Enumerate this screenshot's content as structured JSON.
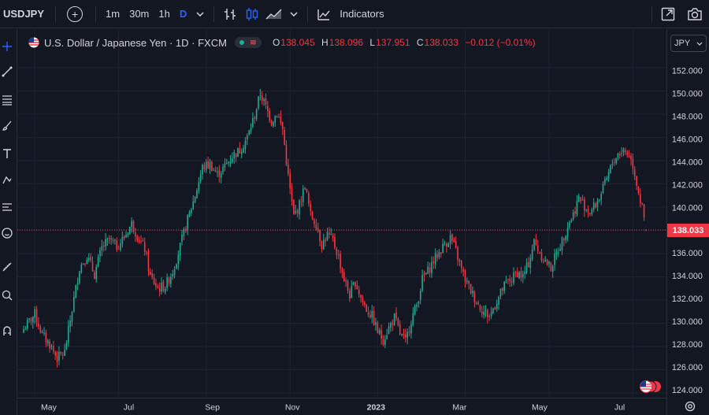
{
  "toolbar": {
    "symbol": "USDJPY",
    "intervals": [
      "1m",
      "30m",
      "1h",
      "D"
    ],
    "active_interval": "D",
    "indicators_label": "Indicators",
    "icons": [
      "plus-circle-icon",
      "chevron-down-icon",
      "bar-style-icon",
      "candle-style-icon",
      "area-style-icon",
      "chevron-down-icon",
      "indicators-icon",
      "fullscreen-icon",
      "camera-icon"
    ]
  },
  "legend": {
    "title": "U.S. Dollar / Japanese Yen · 1D · FXCM",
    "open_key": "O",
    "open": "138.045",
    "high_key": "H",
    "high": "138.096",
    "low_key": "L",
    "low": "137.951",
    "close_key": "C",
    "close": "138.033",
    "change": "−0.012 (−0.01%)"
  },
  "currency_button": "JPY",
  "last_price_label": "138.033",
  "colors": {
    "background": "#131722",
    "up": "#22ab94",
    "down": "#f23645",
    "grid": "#1e222d",
    "text": "#d1d4dc",
    "accent": "#2962ff"
  },
  "sidebar_icons": [
    "crosshair-icon",
    "trend-line-icon",
    "fib-icon",
    "brush-icon",
    "text-icon",
    "pattern-icon",
    "forecast-icon",
    "emoji-icon",
    "ruler-icon",
    "zoom-icon",
    "magnet-icon"
  ],
  "chart_data": {
    "type": "candlestick",
    "title": "U.S. Dollar / Japanese Yen · 1D · FXCM",
    "ylim": [
      124,
      153.5
    ],
    "y_ticks": [
      "152.000",
      "150.000",
      "148.000",
      "146.000",
      "144.000",
      "142.000",
      "140.000",
      "138.000",
      "136.000",
      "134.000",
      "132.000",
      "130.000",
      "128.000",
      "126.000",
      "124.000"
    ],
    "x_ticks": [
      "May",
      "Jul",
      "Sep",
      "Nov",
      "2023",
      "Mar",
      "May",
      "Jul"
    ],
    "last_price": 138.033,
    "price_path": [
      [
        0,
        129.5
      ],
      [
        6,
        130.8
      ],
      [
        10,
        129.0
      ],
      [
        14,
        128.2
      ],
      [
        18,
        127.0
      ],
      [
        22,
        127.5
      ],
      [
        26,
        131.2
      ],
      [
        30,
        134.8
      ],
      [
        34,
        135.8
      ],
      [
        38,
        134.2
      ],
      [
        42,
        136.5
      ],
      [
        46,
        137.2
      ],
      [
        50,
        136.6
      ],
      [
        54,
        137.4
      ],
      [
        58,
        138.6
      ],
      [
        62,
        137.2
      ],
      [
        65,
        136.4
      ],
      [
        68,
        134.0
      ],
      [
        72,
        133.0
      ],
      [
        76,
        133.2
      ],
      [
        80,
        134.5
      ],
      [
        84,
        136.6
      ],
      [
        88,
        138.9
      ],
      [
        92,
        141.0
      ],
      [
        96,
        143.4
      ],
      [
        100,
        143.7
      ],
      [
        104,
        142.8
      ],
      [
        108,
        143.5
      ],
      [
        112,
        144.4
      ],
      [
        116,
        144.9
      ],
      [
        120,
        146.0
      ],
      [
        124,
        147.9
      ],
      [
        127,
        149.8
      ],
      [
        130,
        148.6
      ],
      [
        133,
        147.4
      ],
      [
        136,
        148.1
      ],
      [
        139,
        146.7
      ],
      [
        142,
        142.6
      ],
      [
        145,
        139.2
      ],
      [
        148,
        140.2
      ],
      [
        151,
        141.9
      ],
      [
        154,
        139.3
      ],
      [
        157,
        138.6
      ],
      [
        160,
        136.8
      ],
      [
        163,
        137.6
      ],
      [
        166,
        137.1
      ],
      [
        169,
        135.7
      ],
      [
        172,
        133.8
      ],
      [
        175,
        132.4
      ],
      [
        178,
        133.6
      ],
      [
        181,
        132.2
      ],
      [
        184,
        131.2
      ],
      [
        187,
        130.6
      ],
      [
        190,
        129.3
      ],
      [
        193,
        128.6
      ],
      [
        196,
        129.6
      ],
      [
        199,
        130.5
      ],
      [
        202,
        129.1
      ],
      [
        205,
        128.4
      ],
      [
        208,
        130.3
      ],
      [
        211,
        131.6
      ],
      [
        214,
        133.8
      ],
      [
        217,
        134.5
      ],
      [
        220,
        135.4
      ],
      [
        223,
        136.1
      ],
      [
        226,
        136.8
      ],
      [
        229,
        137.4
      ],
      [
        232,
        136.2
      ],
      [
        235,
        134.6
      ],
      [
        238,
        133.4
      ],
      [
        241,
        132.5
      ],
      [
        244,
        131.6
      ],
      [
        247,
        131.0
      ],
      [
        250,
        130.6
      ],
      [
        253,
        131.6
      ],
      [
        256,
        132.6
      ],
      [
        259,
        133.5
      ],
      [
        262,
        133.8
      ],
      [
        265,
        134.4
      ],
      [
        268,
        134.0
      ],
      [
        271,
        135.2
      ],
      [
        274,
        137.0
      ],
      [
        277,
        136.1
      ],
      [
        280,
        135.3
      ],
      [
        283,
        134.8
      ],
      [
        286,
        136.0
      ],
      [
        289,
        137.1
      ],
      [
        292,
        138.4
      ],
      [
        295,
        139.4
      ],
      [
        298,
        140.8
      ],
      [
        301,
        140.1
      ],
      [
        304,
        139.6
      ],
      [
        307,
        140.2
      ],
      [
        310,
        141.2
      ],
      [
        313,
        142.4
      ],
      [
        316,
        143.8
      ],
      [
        319,
        144.6
      ],
      [
        322,
        144.9
      ],
      [
        325,
        144.5
      ],
      [
        327,
        143.6
      ],
      [
        329,
        142.1
      ],
      [
        331,
        140.6
      ],
      [
        333,
        139.0
      ],
      [
        334,
        138.03
      ]
    ]
  }
}
